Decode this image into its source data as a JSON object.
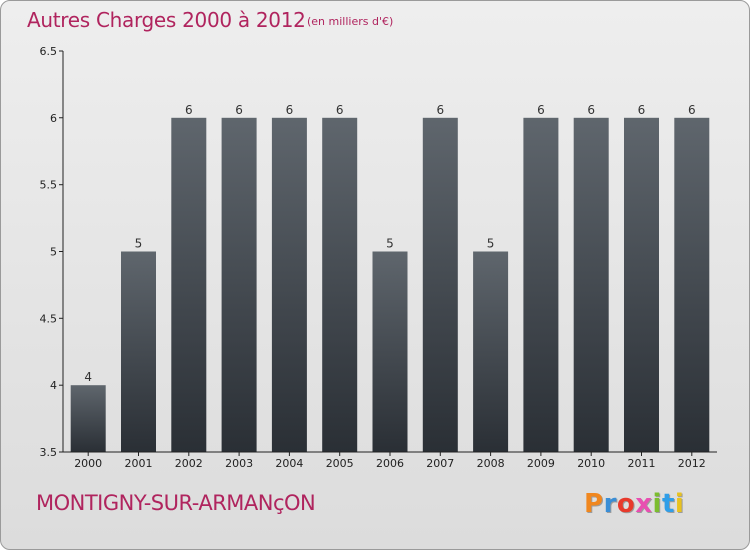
{
  "header": {
    "title": "Autres Charges 2000 à 2012",
    "unit": "(en milliers d'€)"
  },
  "footer": {
    "commune": "MONTIGNY-SUR-ARMANçON",
    "logo_letters": [
      "P",
      "r",
      "o",
      "x",
      "i",
      "t",
      "i"
    ],
    "logo_colors": [
      "#f0871f",
      "#3a8ed6",
      "#e83a2c",
      "#e84fb1",
      "#7cbd2f",
      "#2f9ee8",
      "#e8c21f"
    ]
  },
  "chart_data": {
    "type": "bar",
    "title": "Autres Charges 2000 à 2012",
    "subtitle": "(en milliers d'€)",
    "categories": [
      "2000",
      "2001",
      "2002",
      "2003",
      "2004",
      "2005",
      "2006",
      "2007",
      "2008",
      "2009",
      "2010",
      "2011",
      "2012"
    ],
    "values": [
      4,
      5,
      6,
      6,
      6,
      6,
      5,
      6,
      5,
      6,
      6,
      6,
      6
    ],
    "data_labels": [
      "4",
      "5",
      "6",
      "6",
      "6",
      "6",
      "5",
      "6",
      "5",
      "6",
      "6",
      "6",
      "6"
    ],
    "ylim": [
      3.5,
      6.5
    ],
    "yticks": [
      "3.5",
      "4",
      "4.5",
      "5",
      "5.5",
      "6",
      "6.5"
    ],
    "grid": false,
    "bar_color_top": "#5f666d",
    "bar_color_bottom": "#2a2f35"
  }
}
